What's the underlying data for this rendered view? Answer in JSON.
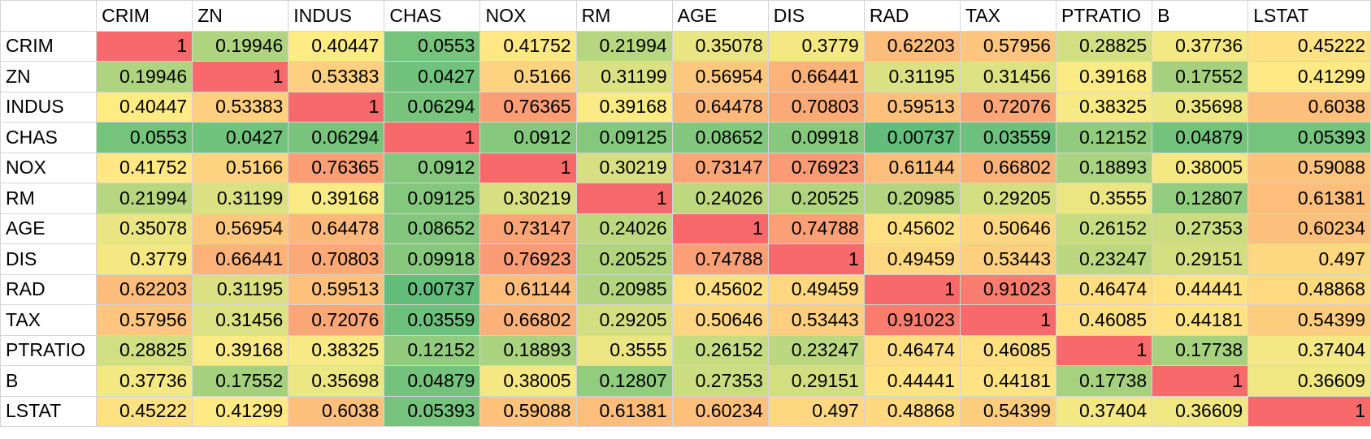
{
  "sheet": {
    "columns": [
      "CRIM",
      "ZN",
      "INDUS",
      "CHAS",
      "NOX",
      "RM",
      "AGE",
      "DIS",
      "RAD",
      "TAX",
      "PTRATIO",
      "B",
      "LSTAT"
    ],
    "rows": [
      {
        "label": "CRIM",
        "values": [
          "1",
          "0.19946",
          "0.40447",
          "0.0553",
          "0.41752",
          "0.21994",
          "0.35078",
          "0.3779",
          "0.62203",
          "0.57956",
          "0.28825",
          "0.37736",
          "0.45222"
        ]
      },
      {
        "label": "ZN",
        "values": [
          "0.19946",
          "1",
          "0.53383",
          "0.0427",
          "0.5166",
          "0.31199",
          "0.56954",
          "0.66441",
          "0.31195",
          "0.31456",
          "0.39168",
          "0.17552",
          "0.41299"
        ]
      },
      {
        "label": "INDUS",
        "values": [
          "0.40447",
          "0.53383",
          "1",
          "0.06294",
          "0.76365",
          "0.39168",
          "0.64478",
          "0.70803",
          "0.59513",
          "0.72076",
          "0.38325",
          "0.35698",
          "0.6038"
        ]
      },
      {
        "label": "CHAS",
        "values": [
          "0.0553",
          "0.0427",
          "0.06294",
          "1",
          "0.0912",
          "0.09125",
          "0.08652",
          "0.09918",
          "0.00737",
          "0.03559",
          "0.12152",
          "0.04879",
          "0.05393"
        ]
      },
      {
        "label": "NOX",
        "values": [
          "0.41752",
          "0.5166",
          "0.76365",
          "0.0912",
          "1",
          "0.30219",
          "0.73147",
          "0.76923",
          "0.61144",
          "0.66802",
          "0.18893",
          "0.38005",
          "0.59088"
        ]
      },
      {
        "label": "RM",
        "values": [
          "0.21994",
          "0.31199",
          "0.39168",
          "0.09125",
          "0.30219",
          "1",
          "0.24026",
          "0.20525",
          "0.20985",
          "0.29205",
          "0.3555",
          "0.12807",
          "0.61381"
        ]
      },
      {
        "label": "AGE",
        "values": [
          "0.35078",
          "0.56954",
          "0.64478",
          "0.08652",
          "0.73147",
          "0.24026",
          "1",
          "0.74788",
          "0.45602",
          "0.50646",
          "0.26152",
          "0.27353",
          "0.60234"
        ]
      },
      {
        "label": "DIS",
        "values": [
          "0.3779",
          "0.66441",
          "0.70803",
          "0.09918",
          "0.76923",
          "0.20525",
          "0.74788",
          "1",
          "0.49459",
          "0.53443",
          "0.23247",
          "0.29151",
          "0.497"
        ]
      },
      {
        "label": "RAD",
        "values": [
          "0.62203",
          "0.31195",
          "0.59513",
          "0.00737",
          "0.61144",
          "0.20985",
          "0.45602",
          "0.49459",
          "1",
          "0.91023",
          "0.46474",
          "0.44441",
          "0.48868"
        ]
      },
      {
        "label": "TAX",
        "values": [
          "0.57956",
          "0.31456",
          "0.72076",
          "0.03559",
          "0.66802",
          "0.29205",
          "0.50646",
          "0.53443",
          "0.91023",
          "1",
          "0.46085",
          "0.44181",
          "0.54399"
        ]
      },
      {
        "label": "PTRATIO",
        "values": [
          "0.28825",
          "0.39168",
          "0.38325",
          "0.12152",
          "0.18893",
          "0.3555",
          "0.26152",
          "0.23247",
          "0.46474",
          "0.46085",
          "1",
          "0.17738",
          "0.37404"
        ]
      },
      {
        "label": "B",
        "values": [
          "0.37736",
          "0.17552",
          "0.35698",
          "0.04879",
          "0.38005",
          "0.12807",
          "0.27353",
          "0.29151",
          "0.44441",
          "0.44181",
          "0.17738",
          "1",
          "0.36609"
        ]
      },
      {
        "label": "LSTAT",
        "values": [
          "0.45222",
          "0.41299",
          "0.6038",
          "0.05393",
          "0.59088",
          "0.61381",
          "0.60234",
          "0.497",
          "0.48868",
          "0.54399",
          "0.37404",
          "0.36609",
          "1"
        ]
      }
    ]
  },
  "color_scale": {
    "low": "#63BE7B",
    "mid": "#FFEB84",
    "high": "#F8696B"
  }
}
